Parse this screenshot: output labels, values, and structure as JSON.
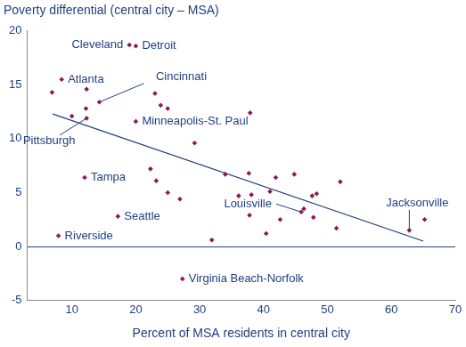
{
  "chart_data": {
    "type": "scatter",
    "title": "Poverty differential (central city – MSA)",
    "x_label": "Percent of MSA residents in central city",
    "series": [
      {
        "type": "scatter",
        "color": "#8b1a4a",
        "marker": "diamond",
        "x": [
          19,
          20,
          8.4,
          6.9,
          12.3,
          14.3,
          10,
          12.2,
          12.3,
          20,
          23,
          23.9,
          25,
          29.2,
          37.9,
          12,
          22.3,
          23.2,
          25,
          26.9,
          34,
          37.7,
          41.9,
          44.8,
          52,
          36.1,
          38.1,
          41,
          47.6,
          48.3,
          17.2,
          7.9,
          37.8,
          42.6,
          45.9,
          46.3,
          47.8,
          51.4,
          40.4,
          31.9,
          62.8,
          65.2,
          27.3
        ],
        "values": [
          18.7,
          18.6,
          15.5,
          14.3,
          14.6,
          13.4,
          12.1,
          12.8,
          11.9,
          11.6,
          14.2,
          13.1,
          12.8,
          9.6,
          12.4,
          6.4,
          7.2,
          6.1,
          5.0,
          4.4,
          6.7,
          6.8,
          6.4,
          6.7,
          6.0,
          4.7,
          4.8,
          5.1,
          4.7,
          4.9,
          2.8,
          1.0,
          2.9,
          2.5,
          3.2,
          3.5,
          2.7,
          1.7,
          1.2,
          0.6,
          1.5,
          2.5,
          -3.0
        ],
        "point_labels": [
          "Cleveland",
          "Detroit",
          "Atlanta",
          null,
          null,
          "Cincinnati",
          null,
          null,
          "Pittsburgh",
          "Minneapolis-St. Paul",
          null,
          null,
          null,
          null,
          null,
          "Tampa",
          null,
          null,
          null,
          null,
          null,
          null,
          null,
          null,
          null,
          null,
          null,
          null,
          null,
          null,
          "Seattle",
          "Riverside",
          null,
          null,
          "Louisville",
          null,
          null,
          null,
          null,
          null,
          "Jacksonville",
          null,
          "Virginia Beach-Norfolk"
        ]
      },
      {
        "type": "line",
        "color": "#1f3f7f",
        "line_style": "solid",
        "x": [
          7,
          65
        ],
        "values": [
          12.3,
          0.5
        ]
      }
    ],
    "xlim": [
      3,
      70
    ],
    "ylim": [
      -5,
      20
    ],
    "xticks": [
      10,
      20,
      30,
      40,
      50,
      60,
      70
    ],
    "yticks": [
      -5,
      0,
      5,
      10,
      15,
      20
    ],
    "grid": false
  }
}
